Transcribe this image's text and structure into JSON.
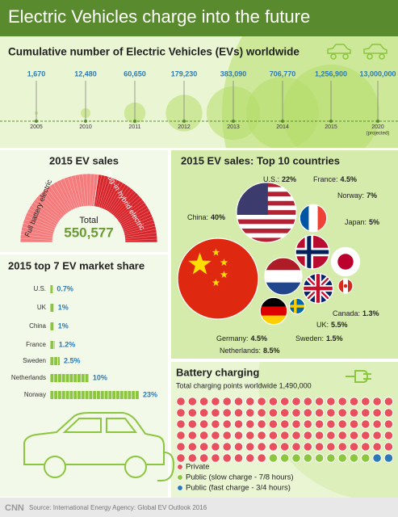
{
  "title": "Electric Vehicles charge into the future",
  "source": "Source: International Energy Agency: Global EV Outlook 2016",
  "logo": "CNN",
  "chart_data": [
    {
      "type": "timeline",
      "title": "Cumulative number of Electric Vehicles (EVs) worldwide",
      "categories": [
        "2005",
        "2010",
        "2011",
        "2012",
        "2013",
        "2014",
        "2015",
        "2020"
      ],
      "annotation": "(projected)",
      "values": [
        1670,
        12480,
        60650,
        179230,
        383090,
        706770,
        1256900,
        13000000
      ],
      "value_labels": [
        "1,670",
        "12,480",
        "60,650",
        "179,230",
        "383,090",
        "706,770",
        "1,256,900",
        "13,000,000"
      ],
      "color": "#b5dc6a"
    },
    {
      "type": "gauge",
      "title": "2015 EV sales",
      "categories": [
        "Full battery electric",
        "Plug-in hybrid electric"
      ],
      "values": [
        300000,
        250577
      ],
      "colors": [
        "#f47c7c",
        "#d7262b"
      ],
      "total_label": "Total",
      "total_value_label": "550,577"
    },
    {
      "type": "flagbubble",
      "title": "2015 EV sales: Top 10 countries",
      "categories": [
        "China:",
        "U.S.:",
        "France:",
        "Norway:",
        "Japan:",
        "Canada:",
        "UK:",
        "Sweden:",
        "Netherlands:",
        "Germany:"
      ],
      "values": [
        40,
        22,
        4.5,
        7,
        5,
        1.3,
        5.5,
        1.5,
        8.5,
        4.5
      ],
      "value_labels": [
        "40%",
        "22%",
        "4.5%",
        "7%",
        "5%",
        "1.3%",
        "5.5%",
        "1.5%",
        "8.5%",
        "4.5%"
      ]
    },
    {
      "type": "bar",
      "title": "2015 top 7 EV market share",
      "categories": [
        "U.S.",
        "UK",
        "China",
        "France",
        "Sweden",
        "Netherlands",
        "Norway"
      ],
      "values": [
        0.7,
        1,
        1,
        1.2,
        2.5,
        10,
        23
      ],
      "value_labels": [
        "0.7%",
        "1%",
        "1%",
        "1.2%",
        "2.5%",
        "10%",
        "23%"
      ],
      "color": "#8cc63f",
      "label_color": "#2a7ab8"
    },
    {
      "type": "waffle",
      "title": "Battery charging",
      "subtitle": "Total charging points worldwide 1,490,000",
      "categories": [
        "Private",
        "Public (slow charge - 7/8 hours)",
        "Public (fast charge - 3/4 hours)"
      ],
      "values": [
        1340000,
        125000,
        25000
      ],
      "colors": [
        "#e8505b",
        "#8cc63f",
        "#2a7ab8"
      ]
    }
  ]
}
